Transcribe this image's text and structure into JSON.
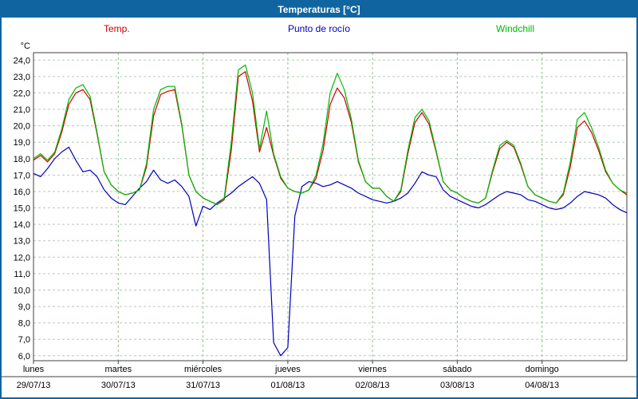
{
  "window": {
    "title": "Temperaturas [°C]",
    "titlebar_color": "#1065a0",
    "titlebar_text_color": "#ffffff",
    "border_color": "#1065a0"
  },
  "legend": {
    "temp": {
      "label": "Temp.",
      "color": "#cc0000"
    },
    "dew_point": {
      "label": "Punto de rocío",
      "color": "#0000bb"
    },
    "windchill": {
      "label": "Windchill",
      "color": "#00bb00"
    }
  },
  "chart_data": {
    "type": "line",
    "title": "Temperaturas [°C]",
    "xlabel": "",
    "ylabel": "°C",
    "ylim": [
      6.0,
      24.0
    ],
    "ytick_step": 1.0,
    "ytick_labels": [
      "24,0",
      "23,0",
      "22,0",
      "21,0",
      "20,0",
      "19,0",
      "18,0",
      "17,0",
      "16,0",
      "15,0",
      "14,0",
      "13,0",
      "12,0",
      "11,0",
      "10,0",
      "9,0",
      "8,0",
      "7,0",
      "6,0"
    ],
    "grid": true,
    "grid_color": "#b6cab6",
    "grid_color_v": "#8fc08f",
    "axis_color": "#404040",
    "legend_position": "top",
    "x_total_hours": 168,
    "x_hours_step": 2,
    "x_days": [
      {
        "name": "lunes",
        "date": "29/07/13"
      },
      {
        "name": "martes",
        "date": "30/07/13"
      },
      {
        "name": "miércoles",
        "date": "31/07/13"
      },
      {
        "name": "jueves",
        "date": "01/08/13"
      },
      {
        "name": "viernes",
        "date": "02/08/13"
      },
      {
        "name": "sábado",
        "date": "03/08/13"
      },
      {
        "name": "domingo",
        "date": "04/08/13"
      }
    ],
    "series": [
      {
        "name": "Temp.",
        "color": "#cc0000",
        "values": [
          17.9,
          18.2,
          17.8,
          18.3,
          19.6,
          21.3,
          22.0,
          22.2,
          21.6,
          19.5,
          17.2,
          16.4,
          16.0,
          15.8,
          15.9,
          16.1,
          17.5,
          20.6,
          21.9,
          22.1,
          22.2,
          20.0,
          17.0,
          16.0,
          15.6,
          15.4,
          15.2,
          15.5,
          18.5,
          23.0,
          23.3,
          21.5,
          18.4,
          19.9,
          18.2,
          16.8,
          16.2,
          16.0,
          15.9,
          16.1,
          16.8,
          18.5,
          21.3,
          22.3,
          21.7,
          20.2,
          17.8,
          16.6,
          16.2,
          16.2,
          15.7,
          15.4,
          16.0,
          18.3,
          20.2,
          20.8,
          20.1,
          18.4,
          16.6,
          16.1,
          15.9,
          15.6,
          15.4,
          15.3,
          15.6,
          17.2,
          18.6,
          19.0,
          18.7,
          17.6,
          16.3,
          15.8,
          15.6,
          15.4,
          15.3,
          15.8,
          17.5,
          19.9,
          20.3,
          19.6,
          18.5,
          17.2,
          16.5,
          16.1,
          15.8
        ]
      },
      {
        "name": "Punto de rocío",
        "color": "#0000bb",
        "values": [
          17.1,
          16.9,
          17.4,
          18.0,
          18.4,
          18.7,
          17.9,
          17.2,
          17.3,
          16.9,
          16.1,
          15.6,
          15.3,
          15.2,
          15.7,
          16.2,
          16.6,
          17.3,
          16.7,
          16.5,
          16.7,
          16.3,
          15.7,
          13.9,
          15.1,
          14.9,
          15.3,
          15.6,
          15.9,
          16.3,
          16.6,
          16.9,
          16.5,
          15.5,
          6.8,
          6.0,
          6.5,
          14.5,
          16.3,
          16.6,
          16.5,
          16.3,
          16.4,
          16.6,
          16.4,
          16.2,
          15.9,
          15.7,
          15.5,
          15.4,
          15.3,
          15.4,
          15.6,
          15.9,
          16.5,
          17.2,
          17.0,
          16.9,
          16.1,
          15.7,
          15.5,
          15.3,
          15.1,
          15.0,
          15.2,
          15.5,
          15.8,
          16.0,
          15.9,
          15.8,
          15.5,
          15.4,
          15.2,
          15.0,
          14.9,
          15.0,
          15.3,
          15.7,
          16.0,
          15.9,
          15.8,
          15.6,
          15.2,
          14.9,
          14.7
        ]
      },
      {
        "name": "Windchill",
        "color": "#00bb00",
        "values": [
          18.0,
          18.3,
          17.9,
          18.4,
          19.8,
          21.6,
          22.3,
          22.5,
          21.8,
          19.6,
          17.2,
          16.4,
          16.0,
          15.8,
          15.9,
          16.1,
          17.7,
          21.0,
          22.2,
          22.4,
          22.4,
          20.1,
          17.0,
          16.0,
          15.6,
          15.4,
          15.2,
          15.6,
          19.0,
          23.4,
          23.7,
          22.0,
          18.6,
          20.9,
          18.3,
          16.9,
          16.2,
          16.0,
          15.9,
          16.1,
          17.0,
          18.9,
          22.0,
          23.2,
          22.2,
          20.4,
          17.9,
          16.6,
          16.2,
          16.2,
          15.7,
          15.4,
          16.1,
          18.5,
          20.5,
          21.0,
          20.3,
          18.5,
          16.6,
          16.1,
          15.9,
          15.6,
          15.4,
          15.3,
          15.6,
          17.3,
          18.8,
          19.1,
          18.8,
          17.7,
          16.3,
          15.8,
          15.6,
          15.4,
          15.3,
          15.9,
          17.8,
          20.4,
          20.8,
          19.9,
          18.7,
          17.3,
          16.5,
          16.1,
          15.9
        ]
      }
    ]
  }
}
